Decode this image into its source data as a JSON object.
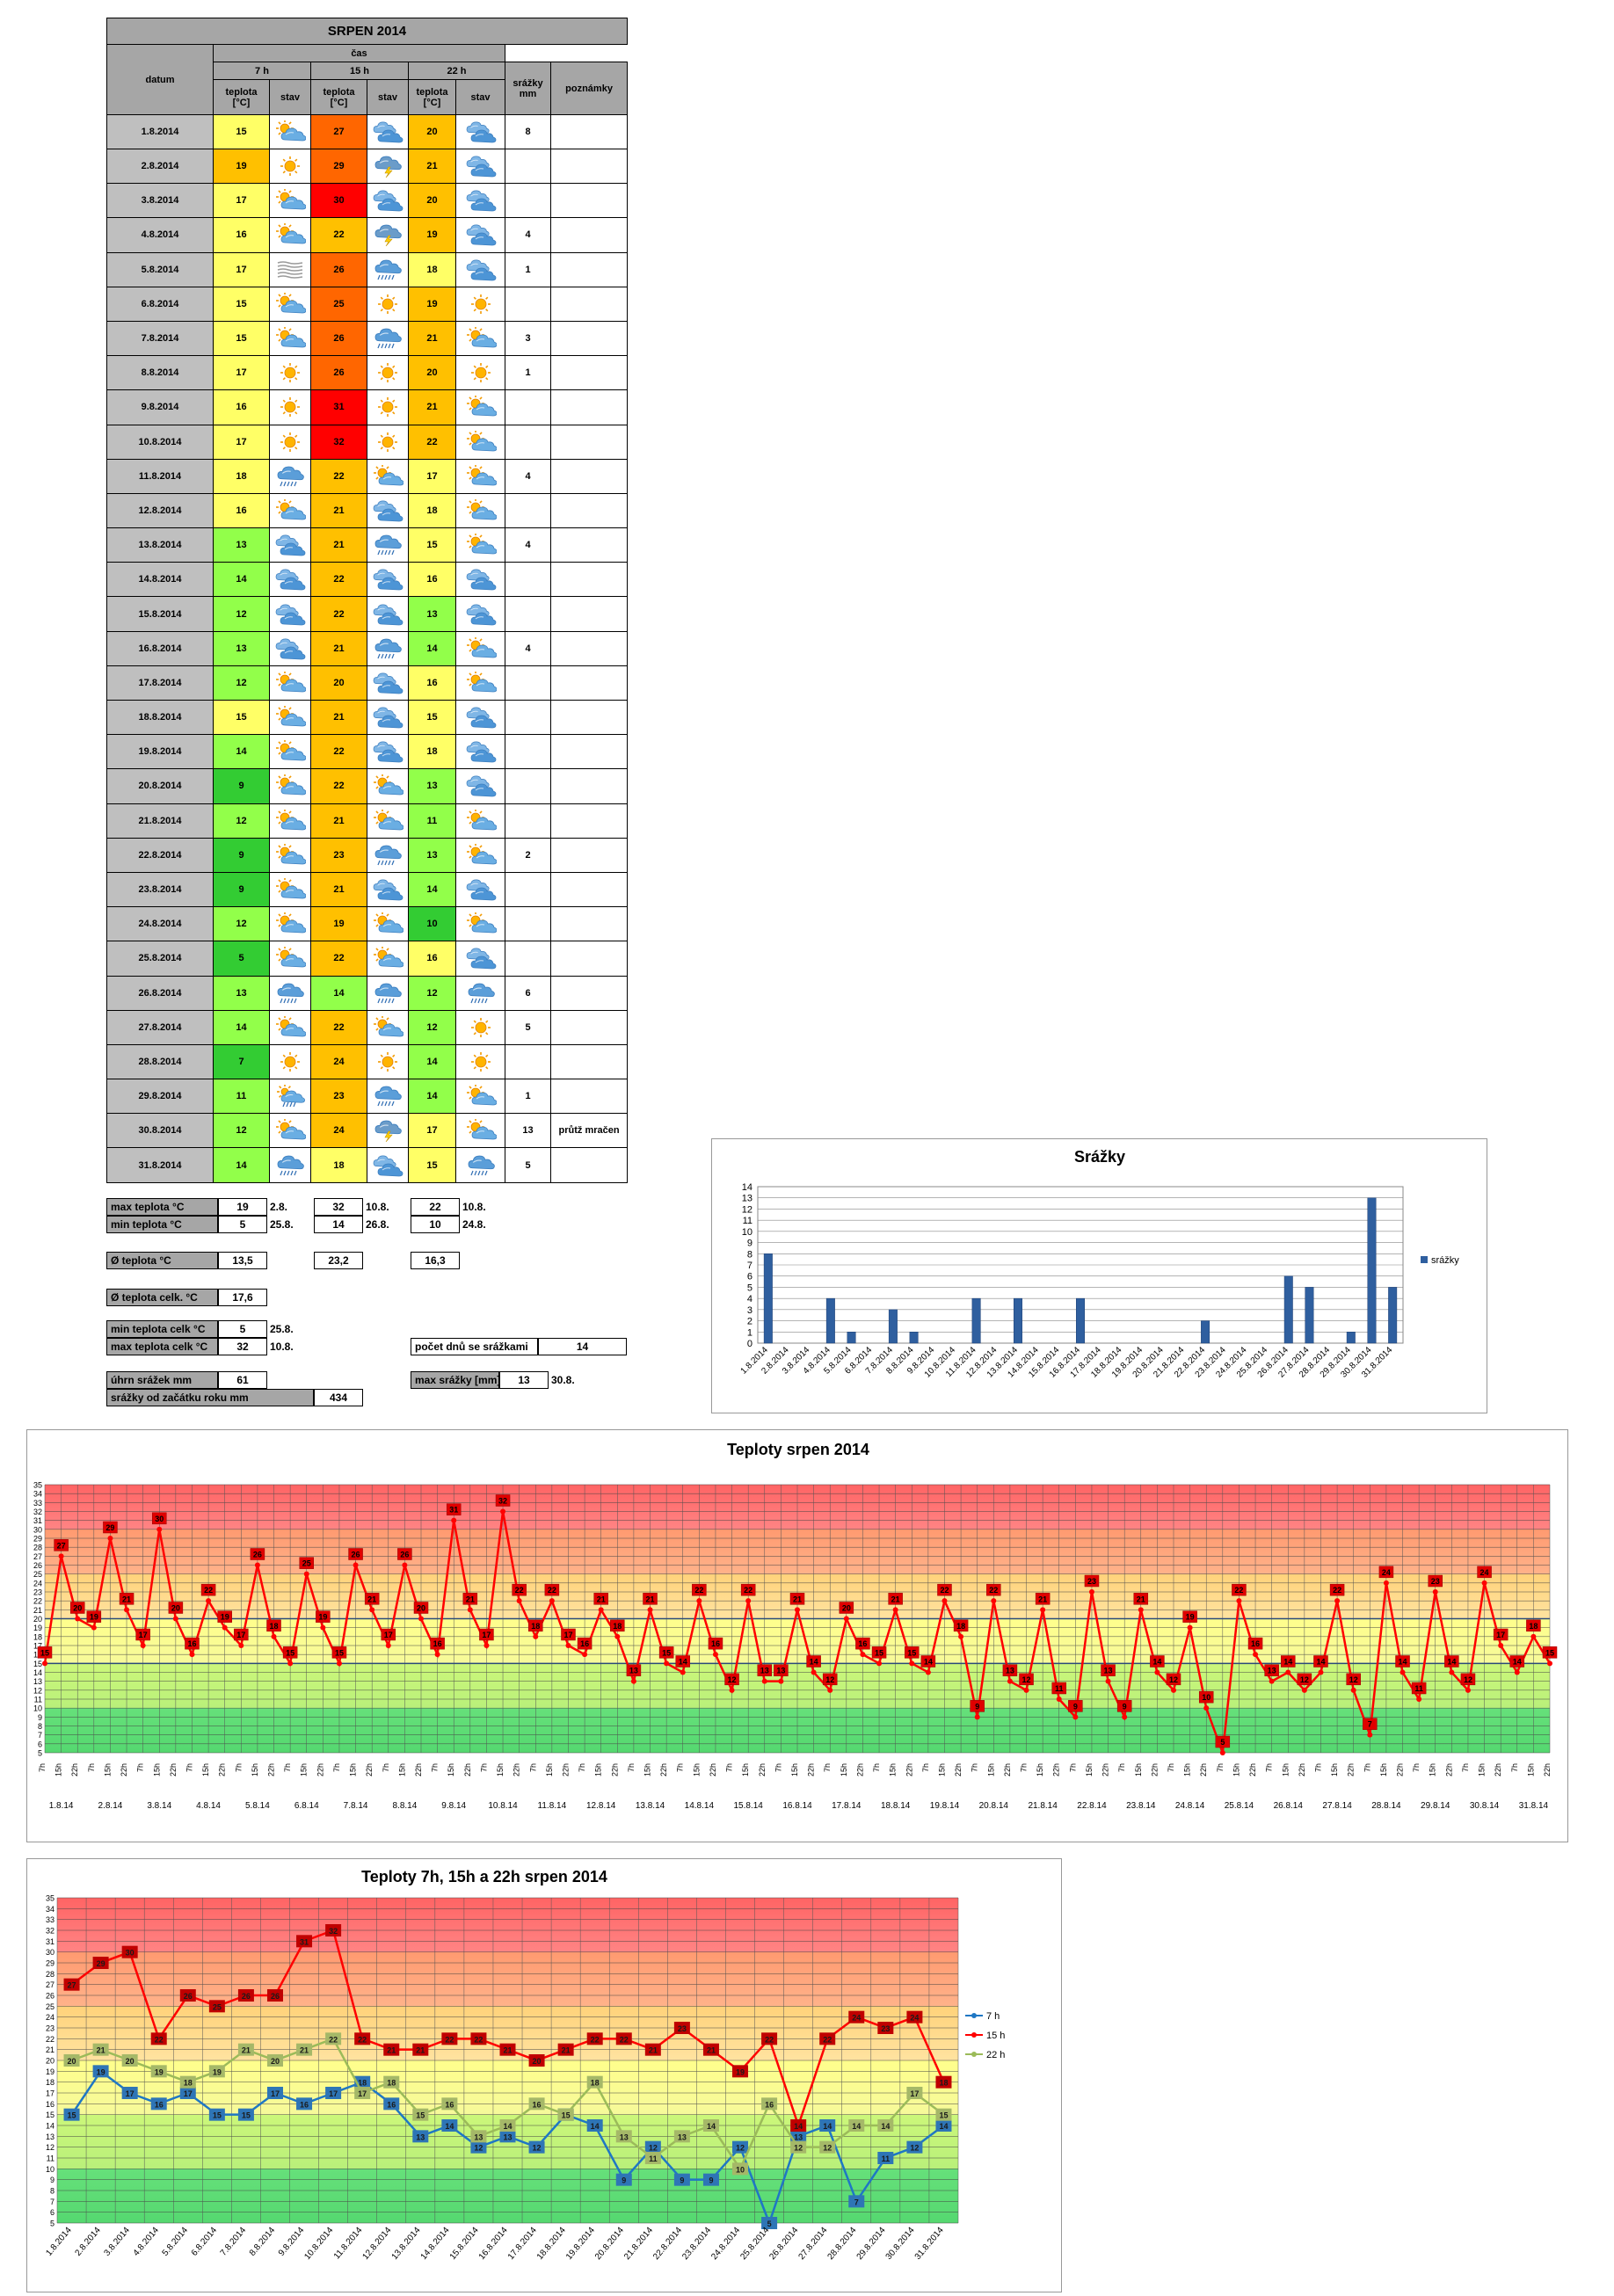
{
  "title": "SRPEN 2014",
  "headers": {
    "datum": "datum",
    "cas": "čas",
    "h7": "7 h",
    "h15": "15 h",
    "h22": "22 h",
    "teplota": "teplota",
    "unit": "[°C]",
    "stav": "stav",
    "srazky": "srážky",
    "mm": "mm",
    "poznamky": "poznámky"
  },
  "rows": [
    {
      "date": "1.8.2014",
      "t7": "15",
      "s7": "sun-cloud-icon",
      "t15": "27",
      "s15": "cloud-icon",
      "t22": "20",
      "s22": "cloud-icon",
      "rain": "8",
      "note": ""
    },
    {
      "date": "2.8.2014",
      "t7": "19",
      "s7": "sun-icon",
      "t15": "29",
      "s15": "storm-icon",
      "t22": "21",
      "s22": "cloud-icon",
      "rain": "",
      "note": ""
    },
    {
      "date": "3.8.2014",
      "t7": "17",
      "s7": "sun-cloud-icon",
      "t15": "30",
      "s15": "cloud-icon",
      "t22": "20",
      "s22": "cloud-icon",
      "rain": "",
      "note": ""
    },
    {
      "date": "4.8.2014",
      "t7": "16",
      "s7": "sun-cloud-icon",
      "t15": "22",
      "s15": "storm-icon",
      "t22": "19",
      "s22": "cloud-icon",
      "rain": "4",
      "note": ""
    },
    {
      "date": "5.8.2014",
      "t7": "17",
      "s7": "fog-icon",
      "t15": "26",
      "s15": "rain-cloud-icon",
      "t22": "18",
      "s22": "cloud-icon",
      "rain": "1",
      "note": ""
    },
    {
      "date": "6.8.2014",
      "t7": "15",
      "s7": "sun-cloud-icon",
      "t15": "25",
      "s15": "sun-icon",
      "t22": "19",
      "s22": "sun-icon",
      "rain": "",
      "note": ""
    },
    {
      "date": "7.8.2014",
      "t7": "15",
      "s7": "sun-cloud-icon",
      "t15": "26",
      "s15": "rain-cloud-icon",
      "t22": "21",
      "s22": "sun-cloud-icon",
      "rain": "3",
      "note": ""
    },
    {
      "date": "8.8.2014",
      "t7": "17",
      "s7": "sun-icon",
      "t15": "26",
      "s15": "sun-icon",
      "t22": "20",
      "s22": "sun-icon",
      "rain": "1",
      "note": ""
    },
    {
      "date": "9.8.2014",
      "t7": "16",
      "s7": "sun-icon",
      "t15": "31",
      "s15": "sun-icon",
      "t22": "21",
      "s22": "sun-cloud-icon",
      "rain": "",
      "note": ""
    },
    {
      "date": "10.8.2014",
      "t7": "17",
      "s7": "sun-icon",
      "t15": "32",
      "s15": "sun-icon",
      "t22": "22",
      "s22": "sun-cloud-icon",
      "rain": "",
      "note": ""
    },
    {
      "date": "11.8.2014",
      "t7": "18",
      "s7": "rain-cloud-icon",
      "t15": "22",
      "s15": "sun-cloud-icon",
      "t22": "17",
      "s22": "sun-cloud-icon",
      "rain": "4",
      "note": ""
    },
    {
      "date": "12.8.2014",
      "t7": "16",
      "s7": "sun-cloud-icon",
      "t15": "21",
      "s15": "cloud-icon",
      "t22": "18",
      "s22": "sun-cloud-icon",
      "rain": "",
      "note": ""
    },
    {
      "date": "13.8.2014",
      "t7": "13",
      "s7": "cloud-icon",
      "t15": "21",
      "s15": "rain-cloud-icon",
      "t22": "15",
      "s22": "sun-cloud-icon",
      "rain": "4",
      "note": ""
    },
    {
      "date": "14.8.2014",
      "t7": "14",
      "s7": "cloud-icon",
      "t15": "22",
      "s15": "cloud-icon",
      "t22": "16",
      "s22": "cloud-icon",
      "rain": "",
      "note": ""
    },
    {
      "date": "15.8.2014",
      "t7": "12",
      "s7": "cloud-icon",
      "t15": "22",
      "s15": "cloud-icon",
      "t22": "13",
      "s22": "cloud-icon",
      "rain": "",
      "note": ""
    },
    {
      "date": "16.8.2014",
      "t7": "13",
      "s7": "cloud-icon",
      "t15": "21",
      "s15": "rain-cloud-icon",
      "t22": "14",
      "s22": "sun-cloud-icon",
      "rain": "4",
      "note": ""
    },
    {
      "date": "17.8.2014",
      "t7": "12",
      "s7": "sun-cloud-icon",
      "t15": "20",
      "s15": "cloud-icon",
      "t22": "16",
      "s22": "sun-cloud-icon",
      "rain": "",
      "note": ""
    },
    {
      "date": "18.8.2014",
      "t7": "15",
      "s7": "sun-cloud-icon",
      "t15": "21",
      "s15": "cloud-icon",
      "t22": "15",
      "s22": "cloud-icon",
      "rain": "",
      "note": ""
    },
    {
      "date": "19.8.2014",
      "t7": "14",
      "s7": "sun-cloud-icon",
      "t15": "22",
      "s15": "cloud-icon",
      "t22": "18",
      "s22": "cloud-icon",
      "rain": "",
      "note": ""
    },
    {
      "date": "20.8.2014",
      "t7": "9",
      "s7": "sun-cloud-icon",
      "t15": "22",
      "s15": "sun-cloud-icon",
      "t22": "13",
      "s22": "cloud-icon",
      "rain": "",
      "note": ""
    },
    {
      "date": "21.8.2014",
      "t7": "12",
      "s7": "sun-cloud-icon",
      "t15": "21",
      "s15": "sun-cloud-icon",
      "t22": "11",
      "s22": "sun-cloud-icon",
      "rain": "",
      "note": ""
    },
    {
      "date": "22.8.2014",
      "t7": "9",
      "s7": "sun-cloud-icon",
      "t15": "23",
      "s15": "rain-cloud-icon",
      "t22": "13",
      "s22": "sun-cloud-icon",
      "rain": "2",
      "note": ""
    },
    {
      "date": "23.8.2014",
      "t7": "9",
      "s7": "sun-cloud-icon",
      "t15": "21",
      "s15": "cloud-icon",
      "t22": "14",
      "s22": "cloud-icon",
      "rain": "",
      "note": ""
    },
    {
      "date": "24.8.2014",
      "t7": "12",
      "s7": "sun-cloud-icon",
      "t15": "19",
      "s15": "sun-cloud-icon",
      "t22": "10",
      "s22": "sun-cloud-icon",
      "rain": "",
      "note": ""
    },
    {
      "date": "25.8.2014",
      "t7": "5",
      "s7": "sun-cloud-icon",
      "t15": "22",
      "s15": "sun-cloud-icon",
      "t22": "16",
      "s22": "cloud-icon",
      "rain": "",
      "note": ""
    },
    {
      "date": "26.8.2014",
      "t7": "13",
      "s7": "rain-cloud-icon",
      "t15": "14",
      "s15": "rain-cloud-icon",
      "t22": "12",
      "s22": "rain-cloud-icon",
      "rain": "6",
      "note": ""
    },
    {
      "date": "27.8.2014",
      "t7": "14",
      "s7": "sun-cloud-icon",
      "t15": "22",
      "s15": "sun-cloud-icon",
      "t22": "12",
      "s22": "sun-icon",
      "rain": "5",
      "note": ""
    },
    {
      "date": "28.8.2014",
      "t7": "7",
      "s7": "sun-icon",
      "t15": "24",
      "s15": "sun-icon",
      "t22": "14",
      "s22": "sun-icon",
      "rain": "",
      "note": ""
    },
    {
      "date": "29.8.2014",
      "t7": "11",
      "s7": "rain-sun-icon",
      "t15": "23",
      "s15": "rain-cloud-icon",
      "t22": "14",
      "s22": "sun-cloud-icon",
      "rain": "1",
      "note": ""
    },
    {
      "date": "30.8.2014",
      "t7": "12",
      "s7": "sun-cloud-icon",
      "t15": "24",
      "s15": "storm-icon",
      "t22": "17",
      "s22": "sun-cloud-icon",
      "rain": "13",
      "note": "průtž mračen"
    },
    {
      "date": "31.8.2014",
      "t7": "14",
      "s7": "rain-cloud-icon",
      "t15": "18",
      "s15": "cloud-icon",
      "t22": "15",
      "s22": "rain-cloud-icon",
      "rain": "5",
      "note": ""
    }
  ],
  "stats": {
    "max_label": "max teplota °C",
    "min_label": "min teplota °C",
    "max7": "19",
    "max7_date": "2.8.",
    "max15": "32",
    "max15_date": "10.8.",
    "max22": "22",
    "max22_date": "10.8.",
    "min7": "5",
    "min7_date": "25.8.",
    "min15": "14",
    "min15_date": "26.8.",
    "min22": "10",
    "min22_date": "24.8.",
    "avg_label": "Ø teplota °C",
    "avg7": "13,5",
    "avg15": "23,2",
    "avg22": "16,3",
    "avg_total_label": "Ø teplota celk. °C",
    "avg_total": "17,6",
    "min_total_label": "min teplota celk °C",
    "min_total": "5",
    "min_total_date": "25.8.",
    "max_total_label": "max teplota celk °C",
    "max_total": "32",
    "max_total_date": "10.8.",
    "rain_days_label": "počet dnů se srážkami",
    "rain_days": "14",
    "sum_label": "úhrn srážek  mm",
    "sum": "61",
    "max_rain_label": "max srážky [mm]",
    "max_rain": "13",
    "max_rain_date": "30.8.",
    "ytd_label": "srážky od začátku roku mm",
    "ytd": "434"
  },
  "colors": {
    "red": "#ff0000",
    "orange_dark": "#ff6600",
    "orange": "#ffc000",
    "yellow": "#ffff66",
    "green_light": "#92ff4a",
    "green": "#33cc33",
    "line_red": "#ff0000",
    "line_blue": "#1f77c4",
    "line_olive": "#9bbb59",
    "bar": "#2f5f9f"
  },
  "chart_data": [
    {
      "type": "bar",
      "title": "Srážky",
      "categories": [
        "1.8.2014",
        "2.8.2014",
        "3.8.2014",
        "4.8.2014",
        "5.8.2014",
        "6.8.2014",
        "7.8.2014",
        "8.8.2014",
        "9.8.2014",
        "10.8.2014",
        "11.8.2014",
        "12.8.2014",
        "13.8.2014",
        "14.8.2014",
        "15.8.2014",
        "16.8.2014",
        "17.8.2014",
        "18.8.2014",
        "19.8.2014",
        "20.8.2014",
        "21.8.2014",
        "22.8.2014",
        "23.8.2014",
        "24.8.2014",
        "25.8.2014",
        "26.8.2014",
        "27.8.2014",
        "28.8.2014",
        "29.8.2014",
        "30.8.2014",
        "31.8.2014"
      ],
      "series": [
        {
          "name": "srážky",
          "values": [
            8,
            0,
            0,
            4,
            1,
            0,
            3,
            1,
            0,
            0,
            4,
            0,
            4,
            0,
            0,
            4,
            0,
            0,
            0,
            0,
            0,
            2,
            0,
            0,
            0,
            6,
            5,
            0,
            1,
            13,
            5
          ]
        }
      ],
      "ylim": [
        0,
        14
      ],
      "legend": "right"
    },
    {
      "type": "line",
      "title": "Teploty srpen 2014",
      "sub_labels": [
        "7h",
        "15h",
        "22h"
      ],
      "day_labels": [
        "1.8.14",
        "2.8.14",
        "3.8.14",
        "4.8.14",
        "5.8.14",
        "6.8.14",
        "7.8.14",
        "8.8.14",
        "9.8.14",
        "10.8.14",
        "11.8.14",
        "12.8.14",
        "13.8.14",
        "14.8.14",
        "15.8.14",
        "16.8.14",
        "17.8.14",
        "18.8.14",
        "19.8.14",
        "20.8.14",
        "21.8.14",
        "22.8.14",
        "23.8.14",
        "24.8.14",
        "25.8.14",
        "26.8.14",
        "27.8.14",
        "28.8.14",
        "29.8.14",
        "30.8.14",
        "31.8.14"
      ],
      "values": [
        15,
        27,
        20,
        19,
        29,
        21,
        17,
        30,
        20,
        16,
        22,
        19,
        17,
        26,
        18,
        15,
        25,
        19,
        15,
        26,
        21,
        17,
        26,
        20,
        16,
        31,
        21,
        17,
        32,
        22,
        18,
        22,
        17,
        16,
        21,
        18,
        13,
        21,
        15,
        14,
        22,
        16,
        12,
        22,
        13,
        13,
        21,
        14,
        12,
        20,
        16,
        15,
        21,
        15,
        14,
        22,
        18,
        9,
        22,
        13,
        12,
        21,
        11,
        9,
        23,
        13,
        9,
        21,
        14,
        12,
        19,
        10,
        5,
        22,
        16,
        13,
        14,
        12,
        14,
        22,
        12,
        7,
        24,
        14,
        11,
        23,
        14,
        12,
        24,
        17,
        14,
        18,
        15
      ],
      "ylim": [
        5,
        35
      ]
    },
    {
      "type": "line",
      "title": "Teploty 7h, 15h a 22h srpen 2014",
      "categories": [
        "1.8.2014",
        "2.8.2014",
        "3.8.2014",
        "4.8.2014",
        "5.8.2014",
        "6.8.2014",
        "7.8.2014",
        "8.8.2014",
        "9.8.2014",
        "10.8.2014",
        "11.8.2014",
        "12.8.2014",
        "13.8.2014",
        "14.8.2014",
        "15.8.2014",
        "16.8.2014",
        "17.8.2014",
        "18.8.2014",
        "19.8.2014",
        "20.8.2014",
        "21.8.2014",
        "22.8.2014",
        "23.8.2014",
        "24.8.2014",
        "25.8.2014",
        "26.8.2014",
        "27.8.2014",
        "28.8.2014",
        "29.8.2014",
        "30.8.2014",
        "31.8.2014"
      ],
      "series": [
        {
          "name": "7 h",
          "values": [
            15,
            19,
            17,
            16,
            17,
            15,
            15,
            17,
            16,
            17,
            18,
            16,
            13,
            14,
            12,
            13,
            12,
            15,
            14,
            9,
            12,
            9,
            9,
            12,
            5,
            13,
            14,
            7,
            11,
            12,
            14
          ]
        },
        {
          "name": "15 h",
          "values": [
            27,
            29,
            30,
            22,
            26,
            25,
            26,
            26,
            31,
            32,
            22,
            21,
            21,
            22,
            22,
            21,
            20,
            21,
            22,
            22,
            21,
            23,
            21,
            19,
            22,
            14,
            22,
            24,
            23,
            24,
            18
          ]
        },
        {
          "name": "22 h",
          "values": [
            20,
            21,
            20,
            19,
            18,
            19,
            21,
            20,
            21,
            22,
            17,
            18,
            15,
            16,
            13,
            14,
            16,
            15,
            18,
            13,
            11,
            13,
            14,
            10,
            16,
            12,
            12,
            14,
            14,
            17,
            15
          ]
        }
      ],
      "ylim": [
        5,
        35
      ],
      "legend": "right"
    }
  ]
}
